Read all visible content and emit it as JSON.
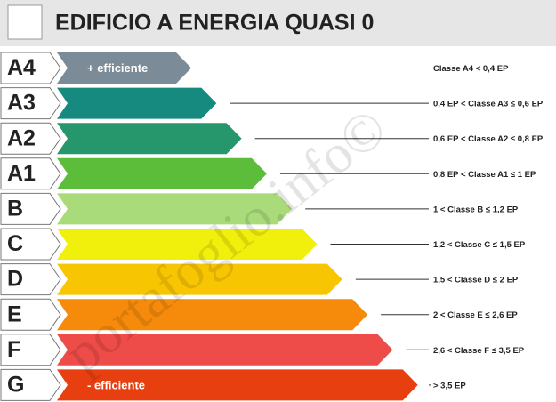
{
  "header": {
    "title": "EDIFICIO A ENERGIA QUASI 0"
  },
  "watermark": "portafoglio.info©",
  "classes": [
    {
      "label": "A4",
      "arrow_text": "+ efficiente",
      "description": "Classe A4 < 0,4 EP",
      "color": "#7b8b97"
    },
    {
      "label": "A3",
      "description": "0,4 EP < Classe A3 ≤ 0,6 EP",
      "color": "#178a80"
    },
    {
      "label": "A2",
      "description": "0,6 EP < Classe A2 ≤ 0,8 EP",
      "color": "#26976d"
    },
    {
      "label": "A1",
      "description": "0,8 EP < Classe A1 ≤ 1 EP",
      "color": "#5cbd3b"
    },
    {
      "label": "B",
      "description": "1 < Classe B ≤ 1,2 EP",
      "color": "#a9db7b"
    },
    {
      "label": "C",
      "description": "1,2 < Classe C ≤ 1,5 EP",
      "color": "#f1ef0c"
    },
    {
      "label": "D",
      "description": "1,5 < Classe D ≤ 2 EP",
      "color": "#f8c502"
    },
    {
      "label": "E",
      "description": "2 < Classe E ≤ 2,6 EP",
      "color": "#f58a0b"
    },
    {
      "label": "F",
      "description": "2,6 < Classe F ≤ 3,5 EP",
      "color": "#ee4c48"
    },
    {
      "label": "G",
      "arrow_text": "- efficiente",
      "description": "> 3,5 EP",
      "color": "#e83f10"
    }
  ]
}
